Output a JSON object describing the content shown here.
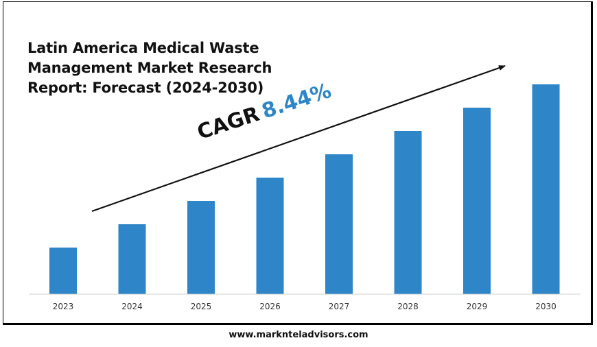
{
  "chart_data": {
    "type": "bar",
    "title_lines": [
      "Latin America Medical Waste",
      "Management Market Research",
      "Report: Forecast (2024-2030)"
    ],
    "categories": [
      "2023",
      "2024",
      "2025",
      "2026",
      "2027",
      "2028",
      "2029",
      "2030"
    ],
    "values": [
      1.0,
      1.5,
      2.0,
      2.5,
      3.0,
      3.5,
      4.0,
      4.5
    ],
    "ylim": [
      0,
      4.5
    ],
    "grid": false,
    "legend": "none",
    "bar_color": "#2e86c8",
    "annotation": {
      "label": "CAGR",
      "value": "8.44%",
      "value_color": "#2e86c8"
    }
  },
  "footer": {
    "website": "www.marknteladvisors.com"
  }
}
